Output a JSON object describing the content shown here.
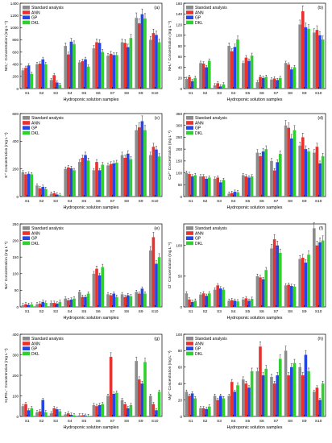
{
  "figure": {
    "samples": [
      "S1",
      "S2",
      "S3",
      "S4",
      "S5",
      "S6",
      "S7",
      "S8",
      "S9",
      "S10"
    ],
    "legend": [
      "Standard analysis",
      "ANN",
      "GP",
      "DKL"
    ],
    "colors": {
      "Standard analysis": "#8c8c8c",
      "ANN": "#e8322d",
      "GP": "#2446e6",
      "DKL": "#2fd02f"
    }
  },
  "chart_data": [
    {
      "panel": "(a)",
      "type": "bar",
      "categories": [
        "S1",
        "S2",
        "S3",
        "S4",
        "S5",
        "S6",
        "S7",
        "S8",
        "S9",
        "S10"
      ],
      "ylabel": "NO₃⁻ Concentration (mg L⁻¹)",
      "xlabel": "Hydroponic solution samples",
      "ylim": [
        0,
        1400
      ],
      "yticks": [
        0,
        200,
        400,
        600,
        800,
        1000,
        1200,
        1400
      ],
      "legend_placement": "top-left",
      "series": [
        {
          "name": "Standard analysis",
          "values": [
            300,
            400,
            140,
            700,
            430,
            660,
            540,
            760,
            1160,
            800
          ]
        },
        {
          "name": "ANN",
          "values": [
            340,
            410,
            220,
            560,
            450,
            760,
            570,
            750,
            1070,
            910
          ]
        },
        {
          "name": "GP",
          "values": [
            380,
            480,
            100,
            770,
            480,
            750,
            550,
            680,
            1220,
            880
          ]
        },
        {
          "name": "DKL",
          "values": [
            240,
            400,
            60,
            730,
            360,
            600,
            550,
            830,
            1150,
            760
          ]
        }
      ]
    },
    {
      "panel": "(b)",
      "type": "bar",
      "categories": [
        "S1",
        "S2",
        "S3",
        "S4",
        "S5",
        "S6",
        "S7",
        "S8",
        "S9",
        "S10"
      ],
      "ylabel": "NH₄⁺ Concentration (mg L⁻¹)",
      "xlabel": "Hydroponic solution samples",
      "ylim": [
        0,
        160
      ],
      "yticks": [
        0,
        20,
        40,
        60,
        80,
        100,
        120,
        140,
        160
      ],
      "legend_placement": "top-left",
      "series": [
        {
          "name": "Standard analysis",
          "values": [
            18,
            48,
            6,
            80,
            48,
            12,
            17,
            48,
            120,
            105
          ]
        },
        {
          "name": "ANN",
          "values": [
            22,
            47,
            10,
            70,
            58,
            22,
            19,
            45,
            145,
            110
          ]
        },
        {
          "name": "GP",
          "values": [
            14,
            40,
            4,
            78,
            52,
            20,
            16,
            36,
            115,
            100
          ]
        },
        {
          "name": "DKL",
          "values": [
            20,
            52,
            8,
            92,
            62,
            22,
            20,
            40,
            112,
            92
          ]
        }
      ]
    },
    {
      "panel": "(c)",
      "type": "bar",
      "categories": [
        "S1",
        "S2",
        "S3",
        "S4",
        "S5",
        "S6",
        "S7",
        "S8",
        "S9",
        "S10"
      ],
      "ylabel": "K⁺ Concentration (mg L⁻¹)",
      "xlabel": "Hydroponic solution samples",
      "ylim": [
        0,
        600
      ],
      "yticks": [
        0,
        200,
        400,
        600
      ],
      "legend_placement": "top-left",
      "series": [
        {
          "name": "Standard analysis",
          "values": [
            175,
            80,
            20,
            200,
            250,
            190,
            225,
            300,
            480,
            300
          ]
        },
        {
          "name": "ANN",
          "values": [
            160,
            60,
            25,
            210,
            280,
            250,
            235,
            280,
            500,
            360
          ]
        },
        {
          "name": "GP",
          "values": [
            165,
            70,
            15,
            205,
            300,
            190,
            240,
            310,
            545,
            340
          ]
        },
        {
          "name": "DKL",
          "values": [
            160,
            55,
            10,
            190,
            260,
            230,
            245,
            270,
            480,
            290
          ]
        }
      ]
    },
    {
      "panel": "(d)",
      "type": "bar",
      "categories": [
        "S1",
        "S2",
        "S3",
        "S4",
        "S5",
        "S6",
        "S7",
        "S8",
        "S9",
        "S10"
      ],
      "ylabel": "Ca²⁺ Concentration (mg L⁻¹)",
      "xlabel": "Hydroponic solution samples",
      "ylim": [
        0,
        350
      ],
      "yticks": [
        0,
        50,
        100,
        150,
        200,
        250,
        300,
        350
      ],
      "legend_placement": "top-left",
      "series": [
        {
          "name": "Standard analysis",
          "values": [
            100,
            85,
            75,
            12,
            90,
            185,
            150,
            300,
            215,
            185
          ]
        },
        {
          "name": "ANN",
          "values": [
            95,
            85,
            80,
            15,
            85,
            170,
            110,
            290,
            250,
            210
          ]
        },
        {
          "name": "GP",
          "values": [
            85,
            75,
            60,
            20,
            80,
            190,
            145,
            245,
            200,
            140
          ]
        },
        {
          "name": "DKL",
          "values": [
            90,
            80,
            70,
            18,
            85,
            200,
            180,
            280,
            190,
            170
          ]
        }
      ]
    },
    {
      "panel": "(e)",
      "type": "bar",
      "categories": [
        "S1",
        "S2",
        "S3",
        "S4",
        "S5",
        "S6",
        "S7",
        "S8",
        "S9",
        "S10"
      ],
      "ylabel": "Na⁺ Concentration (mg L⁻¹)",
      "xlabel": "Hydroponic solution samples",
      "ylim": [
        0,
        250
      ],
      "yticks": [
        0,
        50,
        100,
        150,
        200,
        250
      ],
      "legend_placement": "top-left",
      "series": [
        {
          "name": "Standard analysis",
          "values": [
            5,
            8,
            12,
            25,
            45,
            100,
            38,
            38,
            45,
            170
          ]
        },
        {
          "name": "ANN",
          "values": [
            8,
            10,
            12,
            20,
            30,
            115,
            35,
            30,
            40,
            210
          ]
        },
        {
          "name": "GP",
          "values": [
            6,
            15,
            10,
            22,
            30,
            95,
            40,
            35,
            55,
            130
          ]
        },
        {
          "name": "DKL",
          "values": [
            7,
            12,
            15,
            25,
            40,
            120,
            30,
            32,
            40,
            150
          ]
        }
      ]
    },
    {
      "panel": "(f)",
      "type": "bar",
      "categories": [
        "S1",
        "S2",
        "S3",
        "S4",
        "S5",
        "S6",
        "S7",
        "S8",
        "S9",
        "S10"
      ],
      "ylabel": "Cl⁻ Concentration (mg L⁻¹)",
      "xlabel": "Hydroponic solution samples",
      "ylim": [
        0,
        135
      ],
      "yticks": [
        0,
        50,
        100
      ],
      "legend_placement": "top-left",
      "series": [
        {
          "name": "Standard analysis",
          "values": [
            22,
            20,
            28,
            10,
            12,
            50,
            95,
            35,
            78,
            128
          ]
        },
        {
          "name": "ANN",
          "values": [
            12,
            22,
            35,
            11,
            14,
            48,
            110,
            36,
            80,
            100
          ]
        },
        {
          "name": "GP",
          "values": [
            8,
            18,
            30,
            10,
            10,
            45,
            100,
            34,
            72,
            105
          ]
        },
        {
          "name": "DKL",
          "values": [
            10,
            22,
            28,
            9,
            13,
            60,
            88,
            33,
            85,
            108
          ]
        }
      ]
    },
    {
      "panel": "(g)",
      "type": "bar",
      "categories": [
        "S1",
        "S2",
        "S3",
        "S4",
        "S5",
        "S6",
        "S7",
        "S8",
        "S9",
        "S10"
      ],
      "ylabel": "H₂PO₄⁻ Concentration (mg L⁻¹)",
      "xlabel": "Hydroponic solution samples",
      "ylim": [
        0,
        400
      ],
      "yticks": [
        0,
        100,
        200,
        300,
        400
      ],
      "legend_placement": "top-left",
      "series": [
        {
          "name": "Standard analysis",
          "values": [
            50,
            20,
            15,
            10,
            5,
            55,
            100,
            80,
            270,
            100
          ]
        },
        {
          "name": "ANN",
          "values": [
            60,
            25,
            40,
            15,
            5,
            50,
            290,
            60,
            180,
            60
          ]
        },
        {
          "name": "GP",
          "values": [
            30,
            80,
            35,
            8,
            3,
            55,
            110,
            40,
            160,
            30
          ]
        },
        {
          "name": "DKL",
          "values": [
            40,
            20,
            25,
            5,
            2,
            60,
            115,
            55,
            265,
            120
          ]
        }
      ]
    },
    {
      "panel": "(h)",
      "type": "bar",
      "categories": [
        "S1",
        "S2",
        "S3",
        "S4",
        "S5",
        "S6",
        "S7",
        "S8",
        "S9",
        "S10"
      ],
      "ylabel": "Mg²⁺ Concentration (mg L⁻¹)",
      "xlabel": "Hydroponic solution samples",
      "ylim": [
        0,
        100
      ],
      "yticks": [
        0,
        20,
        40,
        60,
        80,
        100
      ],
      "legend_placement": "top-left",
      "series": [
        {
          "name": "Standard analysis",
          "values": [
            30,
            10,
            25,
            25,
            45,
            55,
            48,
            80,
            60,
            30
          ]
        },
        {
          "name": "ANN",
          "values": [
            25,
            10,
            20,
            42,
            40,
            85,
            40,
            50,
            50,
            35
          ]
        },
        {
          "name": "GP",
          "values": [
            28,
            9,
            25,
            30,
            35,
            50,
            50,
            60,
            75,
            20
          ]
        },
        {
          "name": "DKL",
          "values": [
            22,
            12,
            22,
            38,
            55,
            58,
            70,
            65,
            55,
            40
          ]
        }
      ]
    }
  ]
}
